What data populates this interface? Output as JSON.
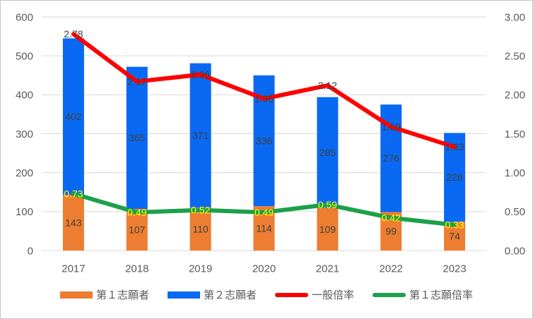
{
  "chart_data": {
    "type": "bar",
    "subtype": "stacked-bar-with-lines-combo",
    "categories": [
      "2017",
      "2018",
      "2019",
      "2020",
      "2021",
      "2022",
      "2023"
    ],
    "bar_series": [
      {
        "name": "第１志願者",
        "axis": "left",
        "color": "#ED7D31",
        "label_color": "#404040",
        "values": [
          143,
          107,
          110,
          114,
          109,
          99,
          74
        ]
      },
      {
        "name": "第２志願者",
        "axis": "left",
        "color": "#0969F2",
        "label_color": "#404040",
        "values": [
          402,
          365,
          371,
          336,
          285,
          276,
          228
        ]
      }
    ],
    "line_series": [
      {
        "name": "一般倍率",
        "axis": "right",
        "color": "#FE0000",
        "label_color": "#404040",
        "values": [
          2.78,
          2.17,
          2.26,
          1.95,
          2.12,
          1.59,
          1.33
        ]
      },
      {
        "name": "第１志願倍率",
        "axis": "right",
        "color": "#1CA049",
        "label_color": "#FFFF00",
        "values": [
          0.73,
          0.49,
          0.52,
          0.49,
          0.59,
          0.42,
          0.33
        ]
      }
    ],
    "left_axis": {
      "min": 0,
      "max": 600,
      "step": 100,
      "ticks": [
        "0",
        "100",
        "200",
        "300",
        "400",
        "500",
        "600"
      ]
    },
    "right_axis": {
      "min": 0,
      "max": 3,
      "step": 0.5,
      "ticks": [
        "0.00",
        "0.50",
        "1.00",
        "1.50",
        "2.00",
        "2.50",
        "3.00"
      ]
    },
    "title": "",
    "xlabel": "",
    "ylabel": "",
    "grid": true,
    "stacked": true,
    "legend_position": "bottom"
  }
}
